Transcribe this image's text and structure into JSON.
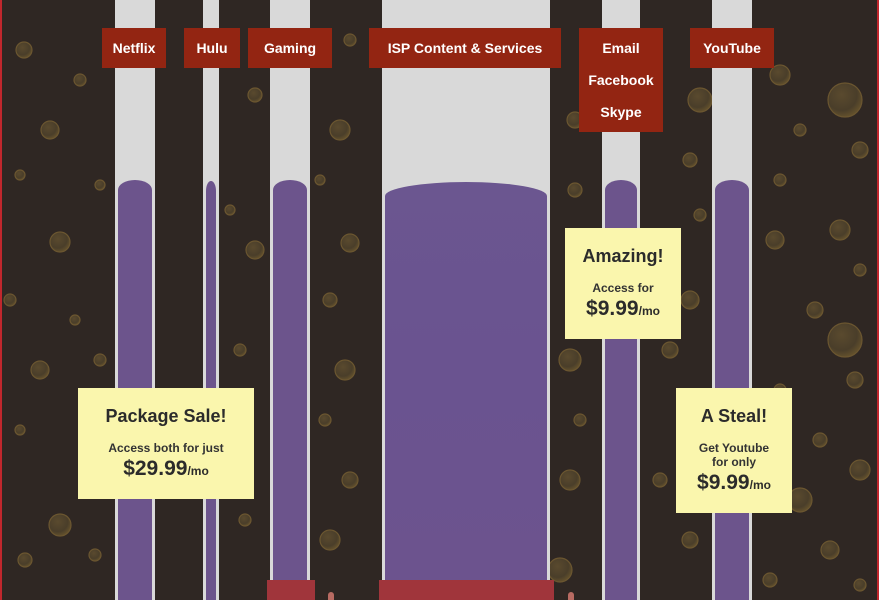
{
  "labels": {
    "netflix": "Netflix",
    "hulu": "Hulu",
    "gaming": "Gaming",
    "isp": "ISP Content & Services",
    "email": "Email",
    "facebook": "Facebook",
    "skype": "Skype",
    "youtube": "YouTube"
  },
  "cards": {
    "package": {
      "title": "Package Sale!",
      "line1": "Access both for just",
      "price": "$29.99",
      "unit": "/mo"
    },
    "amazing": {
      "title": "Amazing!",
      "line1": "Access for",
      "price": "$9.99",
      "unit": "/mo"
    },
    "steal": {
      "title": "A Steal!",
      "line1": "Get Youtube",
      "line2": "for only",
      "price": "$9.99",
      "unit": "/mo"
    }
  },
  "colors": {
    "background": "#2f2723",
    "liquid": "#6c548c",
    "label": "#932512",
    "card": "#faf6ad",
    "border": "#c0272d"
  }
}
